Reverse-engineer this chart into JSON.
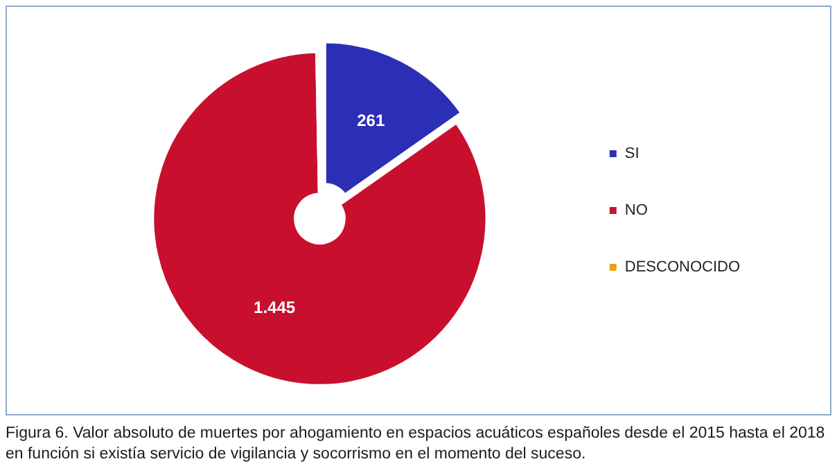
{
  "chart_data": {
    "type": "donut",
    "categories": [
      "SI",
      "NO",
      "DESCONOCIDO"
    ],
    "values": [
      261,
      1445,
      5
    ],
    "colors": [
      "#2b2fb5",
      "#c8102e",
      "#e8a317"
    ],
    "value_labels": [
      "261",
      "1.445",
      null
    ],
    "legend": "right",
    "annotations": [
      "Figura 6. Valor absoluto de muertes por ahogamiento en espacios acuáticos españoles desde el 2015 hasta el 2018 en función si existía servicio de vigilancia y socorrismo en el momento del suceso."
    ]
  }
}
